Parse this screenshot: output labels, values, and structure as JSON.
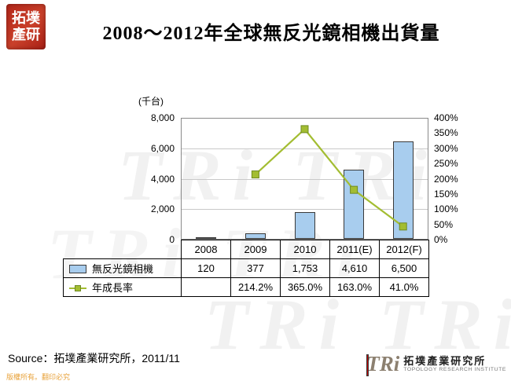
{
  "logo": {
    "line1": "拓墣",
    "line2": "產研"
  },
  "title": "2008～2012年全球無反光鏡相機出貨量",
  "watermark": {
    "text": "TRi TRi"
  },
  "chart_data": {
    "type": "bar",
    "title": "2008～2012年全球無反光鏡相機出貨量",
    "unit_label": "(千台)",
    "categories": [
      "2008",
      "2009",
      "2010",
      "2011(E)",
      "2012(F)"
    ],
    "series": [
      {
        "name": "無反光鏡相機",
        "type": "bar",
        "axis": "left",
        "color": "#a8cdee",
        "border_color": "#3a3a3a",
        "values": [
          120,
          377,
          1753,
          4610,
          6500
        ]
      },
      {
        "name": "年成長率",
        "type": "line",
        "axis": "right",
        "color": "#a3bd32",
        "marker_border": "#6f8b21",
        "values": [
          null,
          214.2,
          365.0,
          163.0,
          41.0
        ]
      }
    ],
    "left_axis": {
      "min": 0,
      "max": 8000,
      "ticks": [
        "8,000",
        "6,000",
        "4,000",
        "2,000",
        "0"
      ]
    },
    "right_axis": {
      "min": 0,
      "max": 400,
      "ticks": [
        "400%",
        "350%",
        "300%",
        "250%",
        "200%",
        "150%",
        "100%",
        "50%",
        "0%"
      ]
    },
    "grid": "horizontal",
    "legend_position": "table-left",
    "table": {
      "bar_row": [
        "120",
        "377",
        "1,753",
        "4,610",
        "6,500"
      ],
      "line_row": [
        "",
        "214.2%",
        "365.0%",
        "163.0%",
        "41.0%"
      ]
    }
  },
  "source": "Source：拓墣產業研究所，2011/11",
  "footer_logo": {
    "tri": "TRi",
    "name": "拓墣產業研究所",
    "subtitle": "TOPOLOGY RESEARCH INSTITUTE"
  },
  "copyright": "版權所有。翻印必究"
}
